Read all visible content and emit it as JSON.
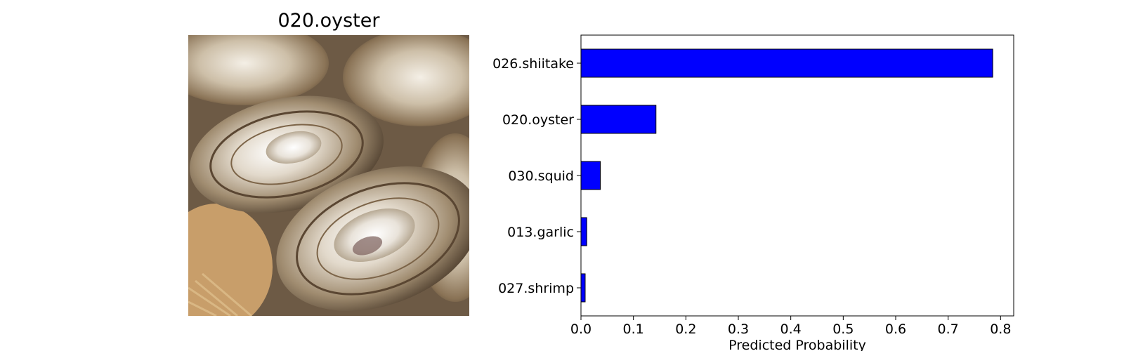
{
  "image_panel": {
    "title": "020.oyster",
    "photo_icon": "oyster-shells-photo"
  },
  "chart_data": {
    "type": "bar",
    "orientation": "horizontal",
    "categories": [
      "026.shiitake",
      "020.oyster",
      "030.squid",
      "013.garlic",
      "027.shrimp"
    ],
    "values": [
      0.785,
      0.143,
      0.037,
      0.011,
      0.008
    ],
    "xlabel": "Predicted Probability",
    "ylabel": "",
    "title": "",
    "xlim": [
      0,
      0.825
    ],
    "xticks": [
      0.0,
      0.1,
      0.2,
      0.3,
      0.4,
      0.5,
      0.6,
      0.7,
      0.8
    ],
    "xtick_labels": [
      "0.0",
      "0.1",
      "0.2",
      "0.3",
      "0.4",
      "0.5",
      "0.6",
      "0.7",
      "0.8"
    ],
    "grid": false,
    "bar_color": "#0000ff",
    "edge_color": "#000000"
  }
}
